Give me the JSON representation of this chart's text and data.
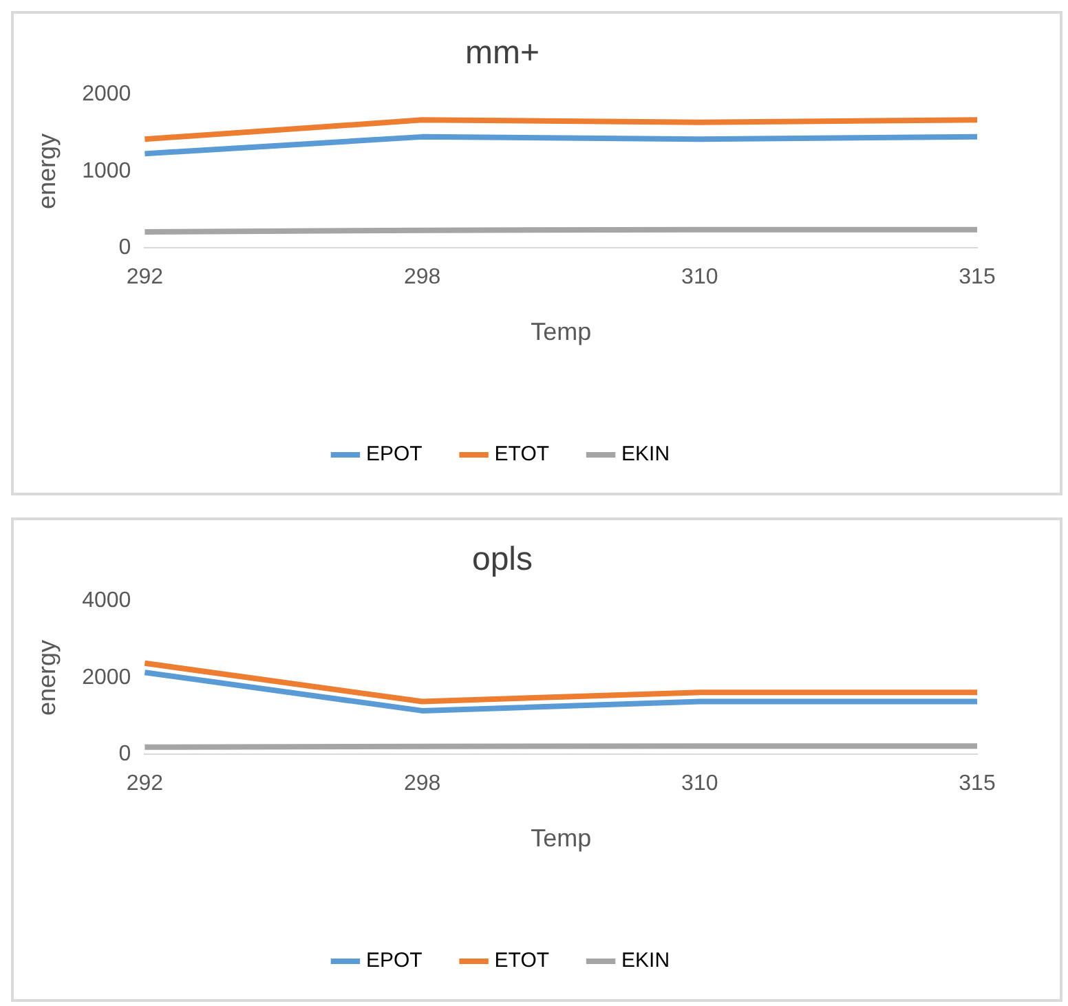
{
  "chart_data": [
    {
      "type": "line",
      "title": "mm+",
      "xlabel": "Temp",
      "ylabel": "energy",
      "categories": [
        "292",
        "298",
        "310",
        "315"
      ],
      "ylim": [
        0,
        2000
      ],
      "yticks": [
        0,
        1000,
        2000
      ],
      "grid": false,
      "legend": "bottom",
      "marker": "none",
      "line_style": "solid",
      "series": [
        {
          "name": "EPOT",
          "color": "#5b9bd5",
          "values": [
            1230,
            1450,
            1420,
            1450
          ]
        },
        {
          "name": "ETOT",
          "color": "#ed7d31",
          "values": [
            1420,
            1670,
            1640,
            1670
          ]
        },
        {
          "name": "EKIN",
          "color": "#a5a5a5",
          "values": [
            210,
            230,
            240,
            240
          ]
        }
      ]
    },
    {
      "type": "line",
      "title": "opls",
      "xlabel": "Temp",
      "ylabel": "energy",
      "categories": [
        "292",
        "298",
        "310",
        "315"
      ],
      "ylim": [
        0,
        4000
      ],
      "yticks": [
        0,
        2000,
        4000
      ],
      "grid": false,
      "legend": "bottom",
      "marker": "none",
      "line_style": "solid",
      "series": [
        {
          "name": "EPOT",
          "color": "#5b9bd5",
          "values": [
            2140,
            1140,
            1380,
            1380
          ]
        },
        {
          "name": "ETOT",
          "color": "#ed7d31",
          "values": [
            2380,
            1380,
            1620,
            1620
          ]
        },
        {
          "name": "EKIN",
          "color": "#a5a5a5",
          "values": [
            190,
            210,
            220,
            220
          ]
        }
      ]
    }
  ]
}
